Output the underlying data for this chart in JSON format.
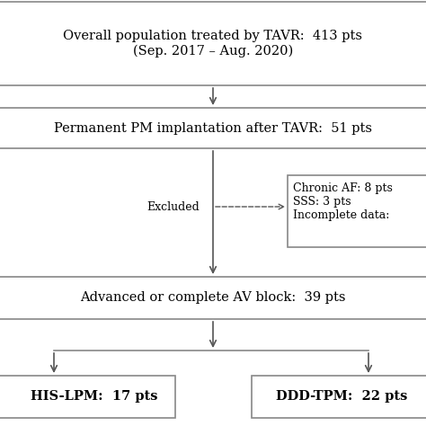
{
  "bg_color": "#ffffff",
  "box1_text": "Overall population treated by TAVR:  413 pts\n(Sep. 2017 – Aug. 2020)",
  "box2_text": "Permanent PM implantation after TAVR:  51 pts",
  "excluded_label": "Excluded",
  "excluded_box_text": "Chronic AF: 8 pts\nSSS: 3 pts\nIncomplete data:",
  "box3_text": "Advanced or complete AV block:  39 pts",
  "box4_text": "HIS-LPM:  17 pts",
  "box5_text": "DDD-TPM:  22 pts",
  "line_color": "#888888",
  "box_line_color": "#888888",
  "arrow_color": "#555555",
  "font_size": 10.5,
  "small_font_size": 9.0,
  "excl_font_size": 9.0
}
